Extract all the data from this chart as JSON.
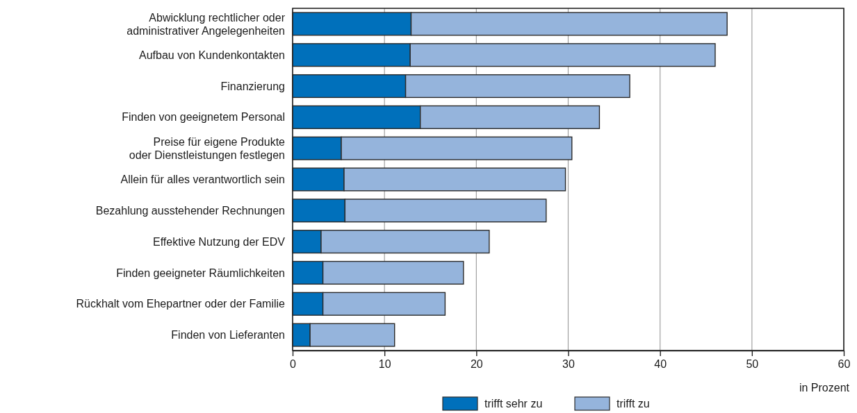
{
  "chart_data": {
    "type": "bar",
    "orientation": "horizontal",
    "stacked": true,
    "categories": [
      "Abwicklung rechtlicher oder administrativer Angelegenheiten",
      "Aufbau von Kundenkontakten",
      "Finanzierung",
      "Finden von geeignetem Personal",
      "Preise für eigene Produkte oder Dienstleistungen festlegen",
      "Allein für alles verantwortlich sein",
      "Bezahlung ausstehender Rechnungen",
      "Effektive Nutzung der EDV",
      "Finden geeigneter Räumlichkeiten",
      "Rückhalt vom Ehepartner oder der Familie",
      "Finden von Lieferanten"
    ],
    "series": [
      {
        "name": "trifft sehr zu",
        "color": "#0070bb",
        "values": [
          12.9,
          12.8,
          12.3,
          13.9,
          5.3,
          5.6,
          5.7,
          3.1,
          3.3,
          3.3,
          1.9
        ]
      },
      {
        "name": "trifft zu",
        "color": "#95b4dc",
        "values": [
          34.4,
          33.2,
          24.4,
          19.5,
          25.1,
          24.1,
          21.9,
          18.3,
          15.3,
          13.3,
          9.2
        ]
      }
    ],
    "xlim": [
      0,
      60
    ],
    "xticks": [
      0,
      10,
      20,
      30,
      40,
      50,
      60
    ],
    "xlabel": "in Prozent",
    "grid": "x",
    "legend": "bottom"
  }
}
